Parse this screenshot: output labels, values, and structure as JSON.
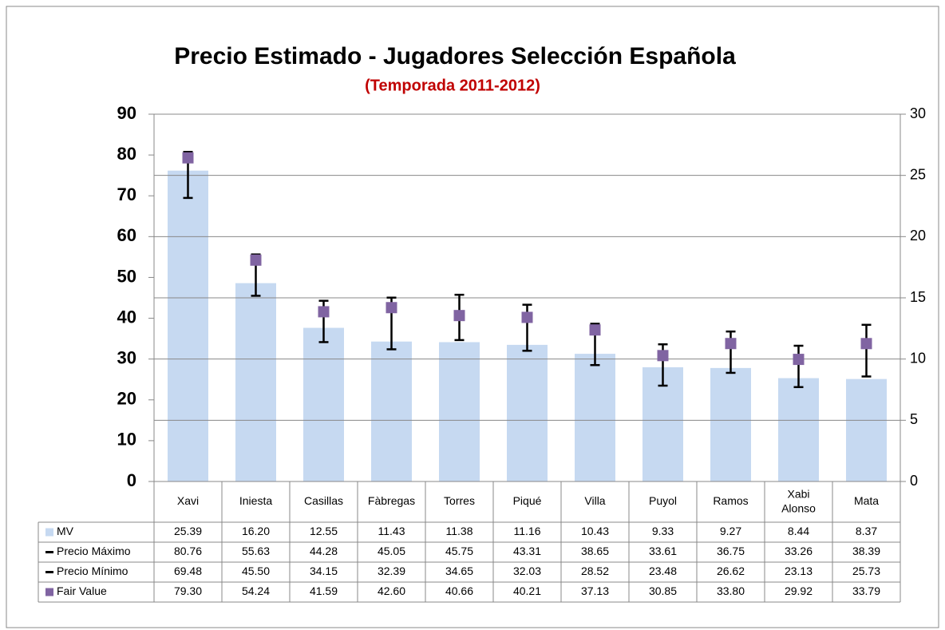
{
  "chart_data": {
    "type": "bar",
    "title": "Precio Estimado - Jugadores Selección Española",
    "subtitle": "(Temporada 2011-2012)",
    "categories": [
      "Xavi",
      "Iniesta",
      "Casillas",
      "Fàbregas",
      "Torres",
      "Piqué",
      "Villa",
      "Puyol",
      "Ramos",
      "Xabi Alonso",
      "Mata"
    ],
    "series": [
      {
        "name": "MV",
        "type": "bar",
        "axis": "y2",
        "color": "#c6d9f1",
        "values": [
          25.39,
          16.2,
          12.55,
          11.43,
          11.38,
          11.16,
          10.43,
          9.33,
          9.27,
          8.44,
          8.37
        ],
        "value_labels": [
          "25.39",
          "16.20",
          "12.55",
          "11.43",
          "11.38",
          "11.16",
          "10.43",
          "9.33",
          "9.27",
          "8.44",
          "8.37"
        ]
      },
      {
        "name": "Precio Máximo",
        "type": "high",
        "color": "#000000",
        "values": [
          80.76,
          55.63,
          44.28,
          45.05,
          45.75,
          43.31,
          38.65,
          33.61,
          36.75,
          33.26,
          38.39
        ],
        "value_labels": [
          "80.76",
          "55.63",
          "44.28",
          "45.05",
          "45.75",
          "43.31",
          "38.65",
          "33.61",
          "36.75",
          "33.26",
          "38.39"
        ]
      },
      {
        "name": "Precio Mínimo",
        "type": "low",
        "color": "#000000",
        "values": [
          69.48,
          45.5,
          34.15,
          32.39,
          34.65,
          32.03,
          28.52,
          23.48,
          26.62,
          23.13,
          25.73
        ],
        "value_labels": [
          "69.48",
          "45.50",
          "34.15",
          "32.39",
          "34.65",
          "32.03",
          "28.52",
          "23.48",
          "26.62",
          "23.13",
          "25.73"
        ]
      },
      {
        "name": "Fair Value",
        "type": "marker",
        "color": "#8064a2",
        "values": [
          79.3,
          54.24,
          41.59,
          42.6,
          40.66,
          40.21,
          37.13,
          30.85,
          33.8,
          29.92,
          33.79
        ],
        "value_labels": [
          "79.30",
          "54.24",
          "41.59",
          "42.60",
          "40.66",
          "40.21",
          "37.13",
          "30.85",
          "33.80",
          "29.92",
          "33.79"
        ]
      }
    ],
    "ylim": [
      0,
      90
    ],
    "yticks": [
      0,
      10,
      20,
      30,
      40,
      50,
      60,
      70,
      80,
      90
    ],
    "y2lim": [
      0,
      30
    ],
    "y2ticks": [
      0,
      5,
      10,
      15,
      20,
      25,
      30
    ],
    "grid": "y2"
  }
}
